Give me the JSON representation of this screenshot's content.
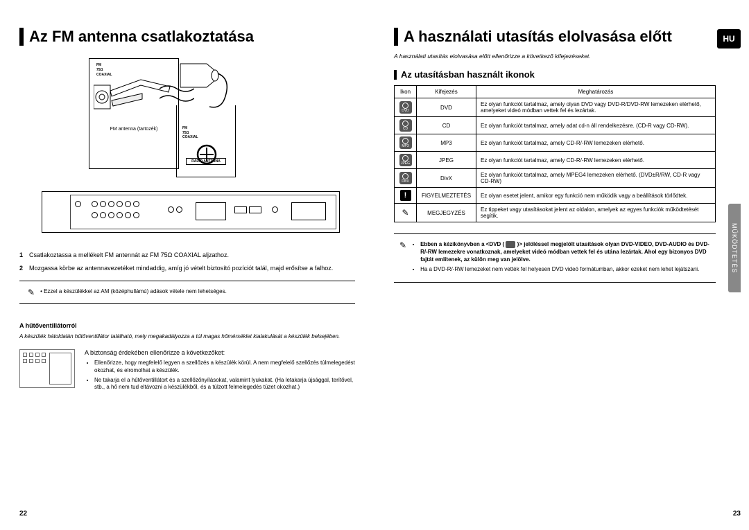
{
  "badge": "HU",
  "side_tab": "MŰKÖDTETÉS",
  "left": {
    "title": "Az FM antenna csatlakoztatása",
    "diagram": {
      "top_labels": [
        "FM",
        "75Ω",
        "COAXIAL"
      ],
      "antenna_label": "FM antenna (tartozék)",
      "right_labels": [
        "FM",
        "75Ω",
        "COAXIAL"
      ],
      "radio_antenna": "RADIO ANTENNA"
    },
    "steps": [
      {
        "n": "1",
        "t": "Csatlakoztassa a mellékelt FM antennát az FM 75Ω COAXIAL aljzathoz."
      },
      {
        "n": "2",
        "t": "Mozgassa körbe az antennavezetéket mindaddig, amíg jó vételt biztosító pozíciót talál, majd erősítse a falhoz."
      }
    ],
    "note": "Ezzel a készülékkel az AM (középhullámú) adások vétele nem lehetséges.",
    "fan_heading": "A hűtőventillátorról",
    "fan_intro": "A készülék hátoldalán hűtőventillátor található, mely megakadályozza a túl magas hőmérséklet kialakulását a készülék belsejében.",
    "fan_check": "A biztonság érdekében ellenőrizze a következőket:",
    "fan_bullets": [
      "Ellenőrizze, hogy megfelelő legyen a szellőzés a készülék körül. A nem megfelelő szellőzés túlmelegedést okozhat, és elromolhat a készülék.",
      "Ne takarja el a hűtőventillátort és a szellőzőnyílásokat, valamint lyukakat. (Ha letakarja újsággal, terítővel, stb., a hő nem tud eltávozni a készülékből, és a túlzott felmelegedés tüzet okozhat.)"
    ],
    "page_num": "22"
  },
  "right": {
    "title": "A használati utasítás elolvasása előtt",
    "intro": "A használati utasítás elolvasása előtt ellenőrizze a következő kifejezéseket.",
    "sub": "Az utasításban használt ikonok",
    "table": {
      "headers": [
        "Ikon",
        "Kifejezés",
        "Meghatározás"
      ],
      "rows": [
        {
          "icon": "DVD",
          "term": "DVD",
          "def": "Ez olyan funkciót tartalmaz, amely olyan DVD vagy DVD-R/DVD-RW lemezeken elérhető, amelyeket videó módban vettek fel és lezártak."
        },
        {
          "icon": "CD",
          "term": "CD",
          "def": "Ez olyan funkciót tartalmaz, amely adat cd-n áll rendelkezésre. (CD-R vagy CD-RW)."
        },
        {
          "icon": "MP3",
          "term": "MP3",
          "def": "Ez olyan funkciót tartalmaz, amely CD-R/-RW lemezeken elérhető."
        },
        {
          "icon": "JPEG",
          "term": "JPEG",
          "def": "Ez olyan funkciót tartalmaz, amely CD-R/-RW lemezeken elérhető."
        },
        {
          "icon": "DivX",
          "term": "DivX",
          "def": "Ez olyan funkciót tartalmaz, amely MPEG4 lemezeken elérhető. (DVD±R/RW, CD-R vagy CD-RW)"
        },
        {
          "icon": "!",
          "term": "FIGYELMEZTETÉS",
          "def": "Ez olyan esetet jelent, amikor egy funkció nem működik vagy a beállítások törlődtek."
        },
        {
          "icon": "✎",
          "term": "MEGJEGYZÉS",
          "def": "Ez tippeket vagy utasításokat jelent az oldalon, amelyek az egyes funkciók működtetését segítik."
        }
      ]
    },
    "note_bullets": [
      "Ebben a kézikönyvben a <DVD ( [ikon] )> jelöléssel megjelölt utasítások olyan DVD-VIDEO, DVD-AUDIO és DVD-R/-RW lemezekre vonatkoznak, amelyeket videó módban vettek fel és utána lezártak. Ahol egy bizonyos DVD fajtát említenek, az külön meg van jelölve.",
      "Ha a DVD-R/-RW lemezeket nem vették fel helyesen DVD videó formátumban, akkor ezeket nem lehet lejátszani."
    ],
    "page_num": "23"
  }
}
